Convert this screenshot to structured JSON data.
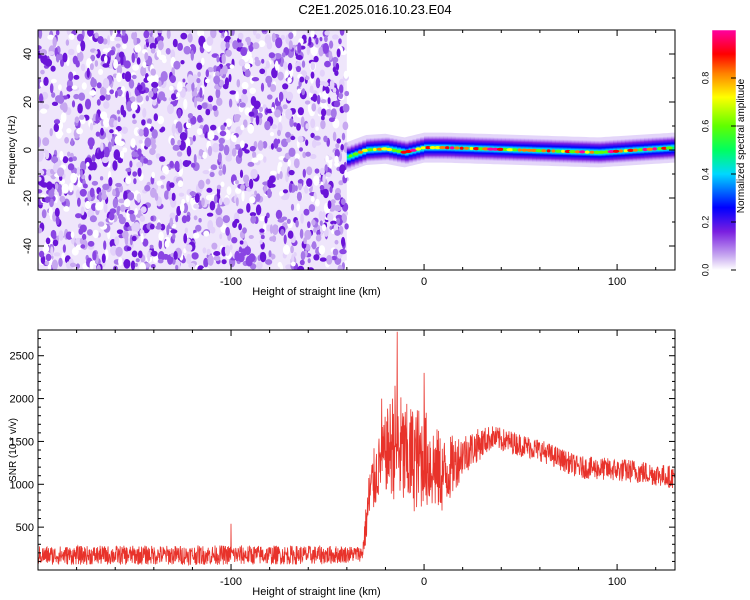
{
  "title": "C2E1.2025.016.10.23.E04",
  "chart_data": [
    {
      "type": "heatmap",
      "xlabel": "Height of straight line (km)",
      "ylabel": "Frequency (Hz)",
      "xlim": [
        -200,
        130
      ],
      "ylim": [
        -50,
        50
      ],
      "xticks": [
        -100,
        0,
        100
      ],
      "yticks": [
        -40,
        -20,
        0,
        20,
        40
      ],
      "colorbar": {
        "label": "Normalized spectral amplitude",
        "range": [
          0,
          1
        ],
        "ticks": [
          0.0,
          0.2,
          0.4,
          0.6,
          0.8
        ]
      },
      "regions": [
        {
          "x_range": [
            -200,
            -40
          ],
          "pattern": "broadband speckle noise",
          "amplitude": [
            0.0,
            0.2
          ]
        },
        {
          "x_range": [
            -40,
            130
          ],
          "pattern": "narrow band centered at 0 Hz",
          "center_hz": 0,
          "amplitude_peak": 0.95
        }
      ],
      "ridge": [
        {
          "x": -40,
          "y": -3
        },
        {
          "x": -30,
          "y": 0
        },
        {
          "x": -20,
          "y": 0.5
        },
        {
          "x": -10,
          "y": -1
        },
        {
          "x": 0,
          "y": 1
        },
        {
          "x": 10,
          "y": 1
        },
        {
          "x": 50,
          "y": 0
        },
        {
          "x": 90,
          "y": -1
        },
        {
          "x": 130,
          "y": 1
        }
      ]
    },
    {
      "type": "line",
      "xlabel": "Height of straight line (km)",
      "ylabel": "SNR (10 * v/v)",
      "xlim": [
        -200,
        130
      ],
      "ylim": [
        0,
        2800
      ],
      "xticks": [
        -100,
        0,
        100
      ],
      "yticks": [
        500,
        1000,
        1500,
        2000,
        2500
      ],
      "color": "#e8322a",
      "envelope": [
        {
          "x": -200,
          "mean": 170,
          "noise": 110
        },
        {
          "x": -100,
          "mean": 175,
          "noise": 115
        },
        {
          "x": -50,
          "mean": 175,
          "noise": 110
        },
        {
          "x": -32,
          "mean": 190,
          "noise": 90
        },
        {
          "x": -28,
          "mean": 900,
          "noise": 400
        },
        {
          "x": -22,
          "mean": 1300,
          "noise": 350
        },
        {
          "x": -15,
          "mean": 1500,
          "noise": 700
        },
        {
          "x": -10,
          "mean": 1300,
          "noise": 650
        },
        {
          "x": 0,
          "mean": 1300,
          "noise": 600
        },
        {
          "x": 10,
          "mean": 1100,
          "noise": 450
        },
        {
          "x": 20,
          "mean": 1350,
          "noise": 250
        },
        {
          "x": 35,
          "mean": 1550,
          "noise": 140
        },
        {
          "x": 60,
          "mean": 1400,
          "noise": 130
        },
        {
          "x": 80,
          "mean": 1200,
          "noise": 130
        },
        {
          "x": 110,
          "mean": 1150,
          "noise": 140
        },
        {
          "x": 130,
          "mean": 1080,
          "noise": 130
        }
      ],
      "peaks": [
        {
          "x": -14,
          "y": 2780
        },
        {
          "x": -22,
          "y": 2000
        },
        {
          "x": 0,
          "y": 2300
        },
        {
          "x": -100,
          "y": 540
        }
      ]
    }
  ]
}
